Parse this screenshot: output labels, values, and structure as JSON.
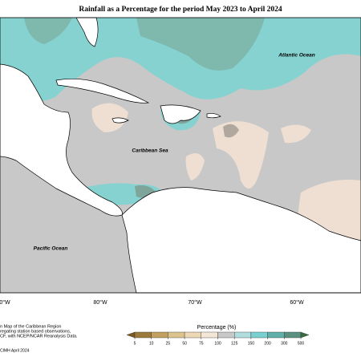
{
  "title": "Rainfall as a Percentage for the period May 2023 to April 2024",
  "map_labels": {
    "atlantic": "Atlantic Ocean",
    "caribbean": "Caribbean Sea",
    "pacific": "Pacific Ocean"
  },
  "longitude_labels": [
    "0°W",
    "80°W",
    "70°W",
    "60°W"
  ],
  "source_text": [
    "n Map of the Caribbean Region",
    "regating station based observations,",
    "CF, with NCEP/NCAR Reanalysis Data."
  ],
  "credit": "CIMH April 2024",
  "legend": {
    "title": "Percentage (%)",
    "ticks": [
      5,
      10,
      25,
      50,
      75,
      100,
      125,
      150,
      200,
      300,
      500
    ],
    "colors": [
      "#7a5a20",
      "#9c7a3c",
      "#c2a060",
      "#dcc38e",
      "#ecd8b4",
      "#f3e6d6",
      "#c8c8c8",
      "#b0dede",
      "#78d0d0",
      "#5fb0a8",
      "#5a9080",
      "#3a6a40"
    ]
  }
}
